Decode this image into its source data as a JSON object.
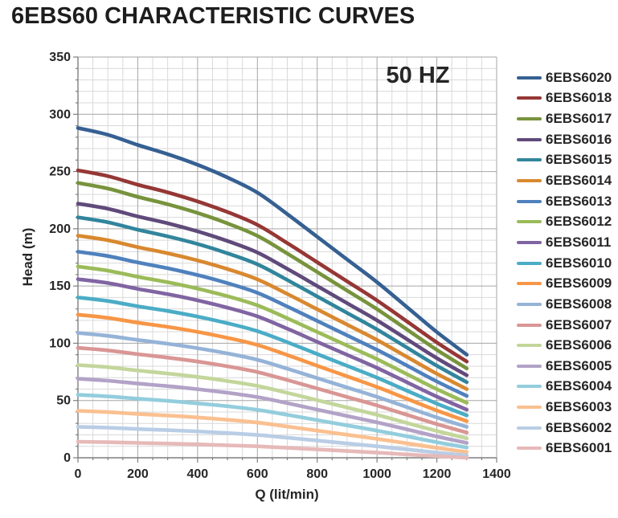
{
  "chart_data": {
    "type": "line",
    "title": "6EBS60 CHARACTERISTIC CURVES",
    "annotation": "50 HZ",
    "xlabel": "Q (lit/min)",
    "ylabel": "Head (m)",
    "xlim": [
      0,
      1400
    ],
    "ylim": [
      0,
      350
    ],
    "x_ticks": [
      0,
      200,
      400,
      600,
      800,
      1000,
      1200,
      1400
    ],
    "y_ticks": [
      0,
      50,
      100,
      150,
      200,
      250,
      300,
      350
    ],
    "x_minor_step": 50,
    "y_minor_step": 10,
    "grid": true,
    "legend_position": "right",
    "x": [
      0,
      100,
      200,
      300,
      400,
      500,
      600,
      700,
      800,
      900,
      1000,
      1100,
      1200,
      1300
    ],
    "series": [
      {
        "name": "6EBS6020",
        "color": "#366092",
        "values": [
          288,
          282.1,
          273.2,
          265.2,
          255.9,
          244.8,
          231.6,
          212.8,
          193,
          173.2,
          153.4,
          131.6,
          109.8,
          90
        ]
      },
      {
        "name": "6EBS6018",
        "color": "#953735",
        "values": [
          251,
          246,
          238.5,
          231.8,
          223.9,
          214.6,
          203.4,
          187.5,
          170.8,
          154.1,
          137.4,
          119.1,
          100.7,
          84
        ]
      },
      {
        "name": "6EBS6017",
        "color": "#77933C",
        "values": [
          240,
          235.1,
          227.9,
          221.4,
          213.8,
          204.7,
          193.8,
          178.4,
          162.2,
          146,
          129.8,
          112,
          94.2,
          78
        ]
      },
      {
        "name": "6EBS6016",
        "color": "#604A7B",
        "values": [
          222,
          217.5,
          210.8,
          204.8,
          197.7,
          189.3,
          179.3,
          165,
          150,
          135,
          120,
          103.5,
          87,
          72
        ]
      },
      {
        "name": "6EBS6015",
        "color": "#31859C",
        "values": [
          210,
          205.7,
          199.2,
          193.4,
          186.7,
          178.6,
          169,
          155.3,
          140.9,
          126.5,
          112.1,
          96.2,
          80.4,
          66
        ]
      },
      {
        "name": "6EBS6014",
        "color": "#D9882F",
        "values": [
          194,
          190,
          184,
          178.6,
          172.3,
          164.8,
          155.8,
          143.1,
          129.7,
          116.3,
          102.9,
          88.1,
          73.4,
          60
        ]
      },
      {
        "name": "6EBS6013",
        "color": "#4F81BD",
        "values": [
          180,
          176.2,
          170.6,
          165.5,
          159.6,
          152.5,
          144.1,
          132.1,
          119.5,
          106.9,
          94.3,
          80.5,
          66.6,
          54
        ]
      },
      {
        "name": "6EBS6012",
        "color": "#9BBB59",
        "values": [
          167,
          163.4,
          158.1,
          153.3,
          147.7,
          141.1,
          133.1,
          121.8,
          109.9,
          98,
          86.1,
          73,
          59.9,
          48
        ]
      },
      {
        "name": "6EBS6011",
        "color": "#8064A2",
        "values": [
          156,
          152.6,
          147.5,
          142.9,
          137.5,
          131.1,
          123.5,
          112.7,
          101.3,
          89.9,
          78.5,
          65.9,
          53.4,
          42
        ]
      },
      {
        "name": "6EBS6010",
        "color": "#4BACC6",
        "values": [
          140,
          136.9,
          132.3,
          128.2,
          123.3,
          117.5,
          110.6,
          100.9,
          90.6,
          80.3,
          70,
          58.6,
          47.3,
          37
        ]
      },
      {
        "name": "6EBS6009",
        "color": "#F79646",
        "values": [
          125,
          122.2,
          118,
          114.3,
          109.9,
          104.7,
          98.5,
          89.7,
          80.4,
          71.1,
          61.8,
          51.5,
          41.3,
          32
        ]
      },
      {
        "name": "6EBS6008",
        "color": "#95B3D7",
        "values": [
          109,
          106.5,
          102.9,
          99.6,
          95.7,
          91.1,
          85.6,
          77.8,
          69.6,
          61.4,
          53.2,
          44.2,
          35.2,
          27
        ]
      },
      {
        "name": "6EBS6007",
        "color": "#D99694",
        "values": [
          96,
          93.8,
          90.5,
          87.5,
          84,
          79.9,
          74.9,
          67.9,
          60.5,
          53.1,
          45.7,
          37.5,
          29.4,
          22
        ]
      },
      {
        "name": "6EBS6006",
        "color": "#C3D69B",
        "values": [
          81,
          79.1,
          76.2,
          73.6,
          70.6,
          67,
          62.8,
          56.7,
          50.3,
          43.9,
          37.5,
          30.4,
          23.4,
          17
        ]
      },
      {
        "name": "6EBS6005",
        "color": "#B3A2C7",
        "values": [
          69,
          67.3,
          64.8,
          62.6,
          59.9,
          56.8,
          53,
          47.7,
          42.1,
          36.5,
          30.9,
          24.8,
          18.6,
          13
        ]
      },
      {
        "name": "6EBS6004",
        "color": "#93CDDD",
        "values": [
          55,
          53.6,
          51.6,
          49.7,
          47.5,
          45,
          41.9,
          37.5,
          32.9,
          28.3,
          23.7,
          18.7,
          13.6,
          9
        ]
      },
      {
        "name": "6EBS6003",
        "color": "#FAC090",
        "values": [
          41,
          39.9,
          38.3,
          36.9,
          35.2,
          33.2,
          30.7,
          27.3,
          23.7,
          20.1,
          16.5,
          12.6,
          8.6,
          5
        ]
      },
      {
        "name": "6EBS6002",
        "color": "#B9CDE5",
        "values": [
          27,
          26.3,
          25.1,
          24.1,
          23,
          21.6,
          19.9,
          17.5,
          15,
          12.5,
          10,
          7.3,
          4.5,
          2
        ]
      },
      {
        "name": "6EBS6001",
        "color": "#E6B9B8",
        "values": [
          14,
          13.6,
          13,
          12.4,
          11.7,
          10.9,
          10,
          8.7,
          7.3,
          5.9,
          4.5,
          2.9,
          1.4,
          0
        ]
      }
    ]
  }
}
